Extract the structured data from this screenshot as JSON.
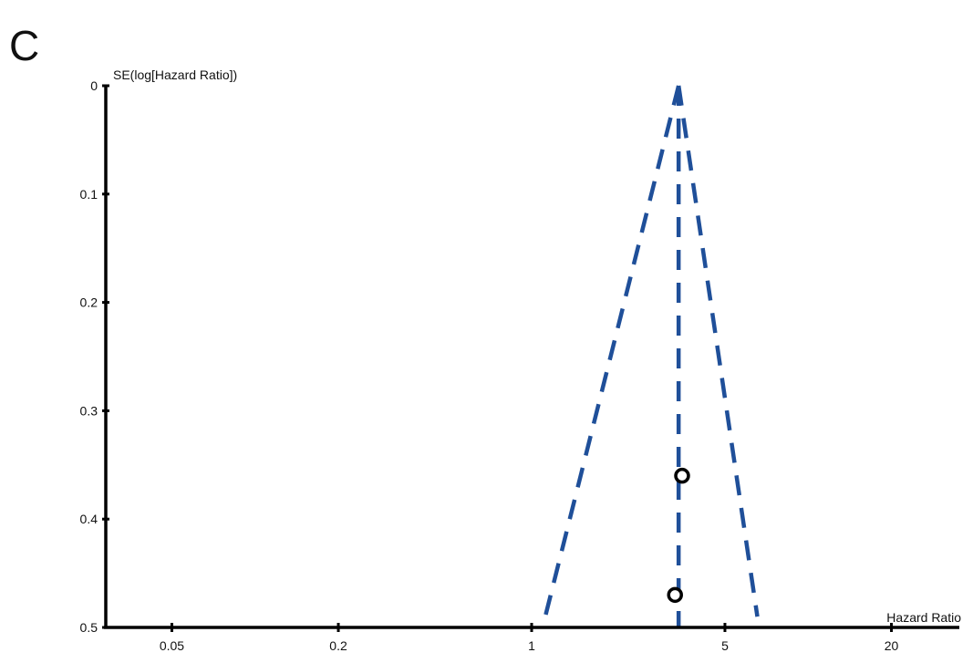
{
  "panel_label": "C",
  "colors": {
    "funnel": "#1f4f99",
    "axis": "#000000",
    "point": "#000000"
  },
  "chart_data": {
    "type": "scatter",
    "subtype": "funnel-plot",
    "title": "",
    "xlabel": "Hazard Ratio",
    "ylabel": "SE(log[Hazard Ratio])",
    "x_scale": "log",
    "x_ticks": [
      0.05,
      0.2,
      1,
      5,
      20
    ],
    "x_tick_labels": [
      "0.05",
      "0.2",
      "1",
      "5",
      "20"
    ],
    "xlim": [
      0.03,
      40
    ],
    "y_ticks": [
      0,
      0.1,
      0.2,
      0.3,
      0.4,
      0.5
    ],
    "y_tick_labels": [
      "0",
      "0.1",
      "0.2",
      "0.3",
      "0.4",
      "0.5"
    ],
    "ylim": [
      0,
      0.5
    ],
    "y_inverted": true,
    "pooled_estimate": 3.4,
    "funnel": {
      "apex": {
        "x": 3.4,
        "y": 0
      },
      "left_base": {
        "x": 1.12,
        "y": 0.49
      },
      "right_base": {
        "x": 6.55,
        "y": 0.49
      },
      "line_style": "dashed"
    },
    "points": [
      {
        "x": 3.5,
        "y": 0.36
      },
      {
        "x": 3.3,
        "y": 0.47
      }
    ],
    "grid": false,
    "legend": "none"
  }
}
